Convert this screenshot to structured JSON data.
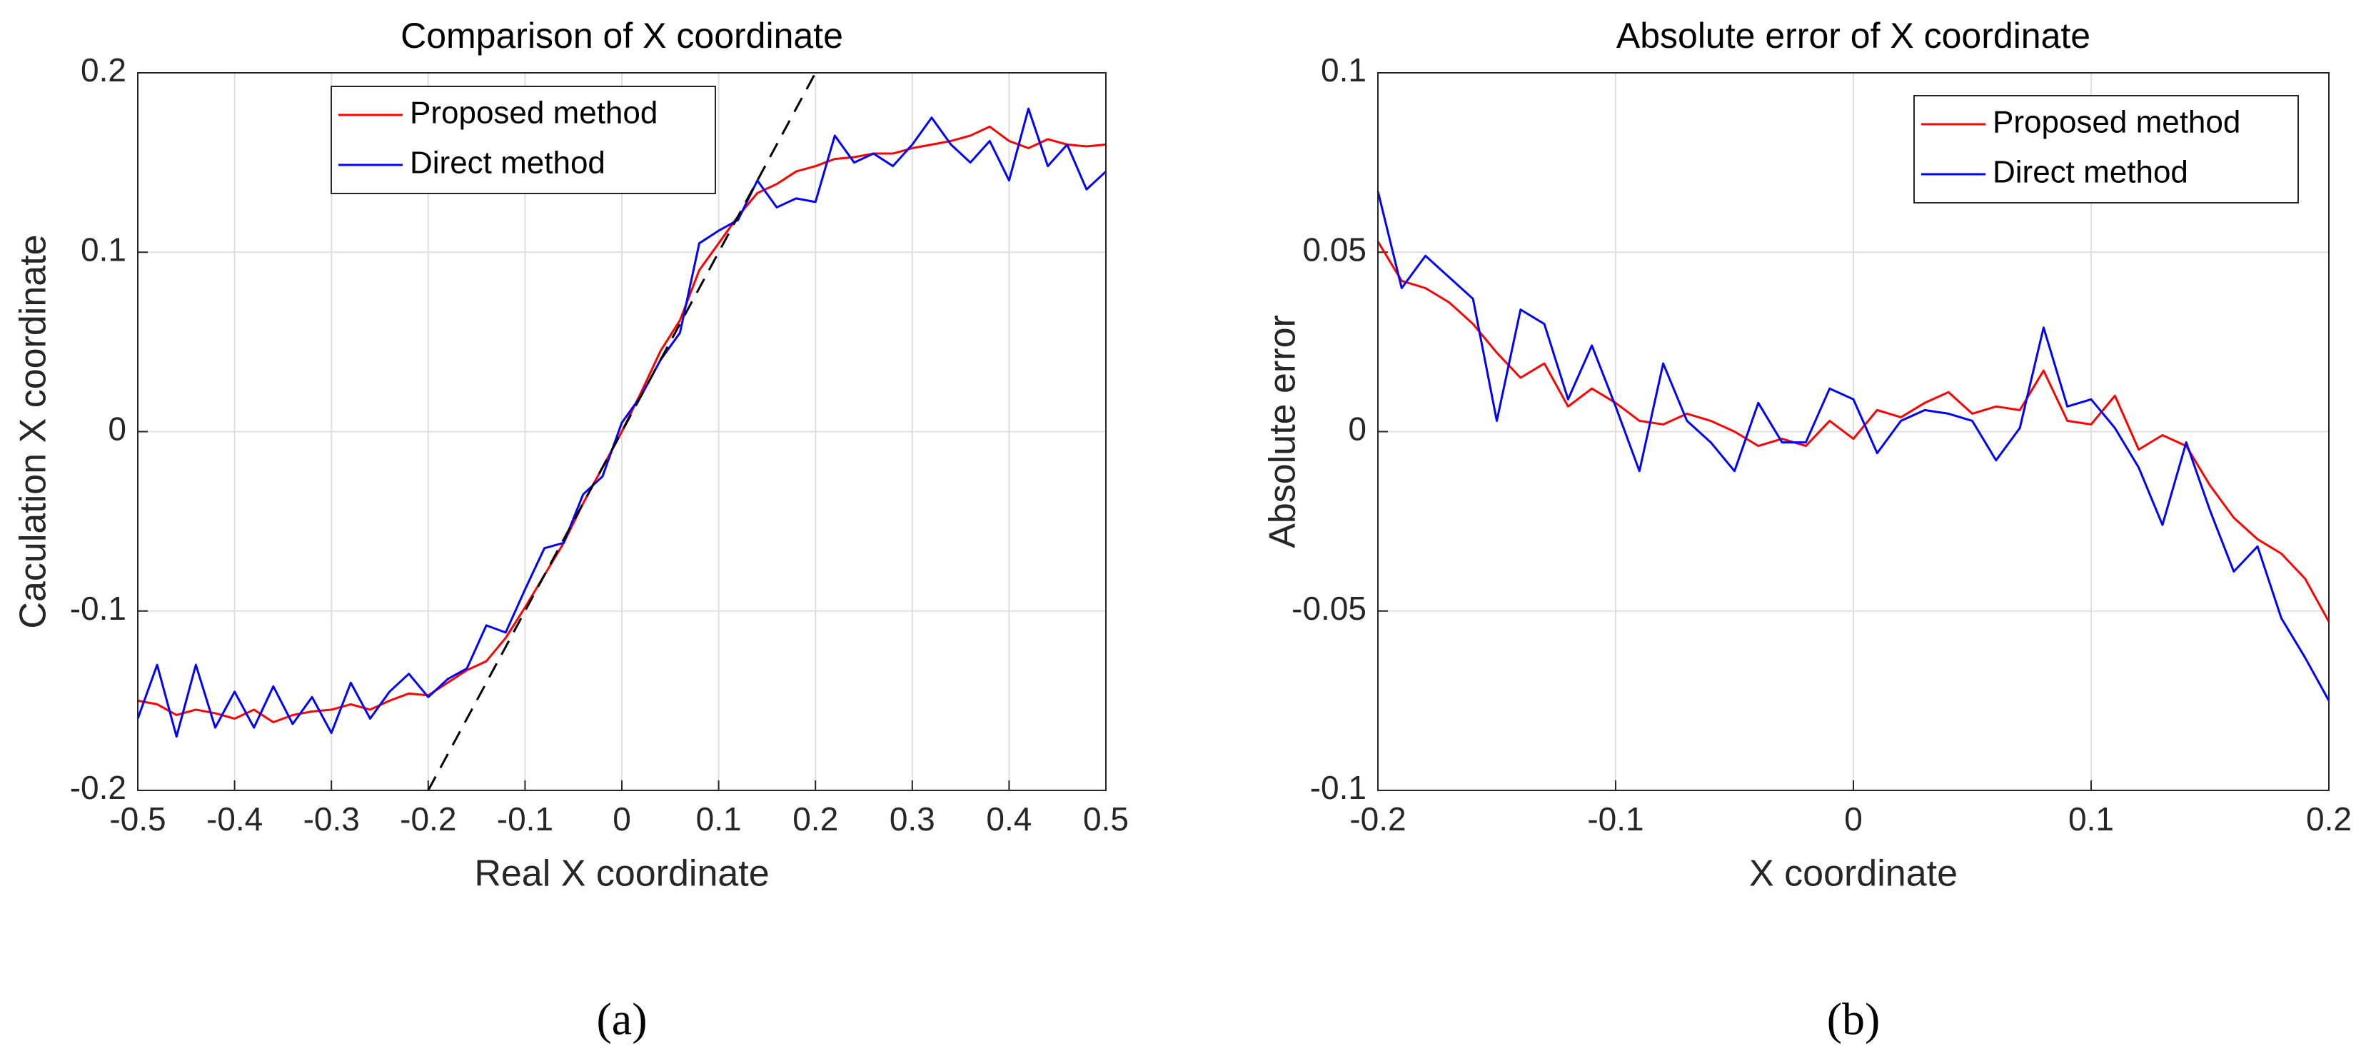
{
  "chart_data": [
    {
      "type": "line",
      "title": "Comparison of X coordinate",
      "xlabel": "Real X coordinate",
      "ylabel": "Caculation X coordinate",
      "caption": "(a)",
      "xlim": [
        -0.5,
        0.5
      ],
      "ylim": [
        -0.2,
        0.2
      ],
      "xticks": [
        -0.5,
        -0.4,
        -0.3,
        -0.2,
        -0.1,
        0,
        0.1,
        0.2,
        0.3,
        0.4,
        0.5
      ],
      "yticks": [
        -0.2,
        -0.1,
        0,
        0.1,
        0.2
      ],
      "grid": true,
      "legend": "upper center",
      "x": [
        -0.5,
        -0.48,
        -0.46,
        -0.44,
        -0.42,
        -0.4,
        -0.38,
        -0.36,
        -0.34,
        -0.32,
        -0.3,
        -0.28,
        -0.26,
        -0.24,
        -0.22,
        -0.2,
        -0.18,
        -0.16,
        -0.14,
        -0.12,
        -0.1,
        -0.08,
        -0.06,
        -0.04,
        -0.02,
        0,
        0.02,
        0.04,
        0.06,
        0.08,
        0.1,
        0.12,
        0.14,
        0.16,
        0.18,
        0.2,
        0.22,
        0.24,
        0.26,
        0.28,
        0.3,
        0.32,
        0.34,
        0.36,
        0.38,
        0.4,
        0.42,
        0.44,
        0.46,
        0.48,
        0.5
      ],
      "series": [
        {
          "name": "Proposed method",
          "color": "#ff0000",
          "values": [
            -0.15,
            -0.152,
            -0.158,
            -0.155,
            -0.157,
            -0.16,
            -0.155,
            -0.162,
            -0.158,
            -0.156,
            -0.155,
            -0.152,
            -0.155,
            -0.15,
            -0.146,
            -0.147,
            -0.14,
            -0.133,
            -0.128,
            -0.115,
            -0.098,
            -0.08,
            -0.062,
            -0.04,
            -0.02,
            0,
            0.022,
            0.045,
            0.062,
            0.09,
            0.105,
            0.12,
            0.133,
            0.138,
            0.145,
            0.148,
            0.152,
            0.153,
            0.155,
            0.155,
            0.158,
            0.16,
            0.162,
            0.165,
            0.17,
            0.162,
            0.158,
            0.163,
            0.16,
            0.159,
            0.16
          ]
        },
        {
          "name": "Direct method",
          "color": "#0000ff",
          "values": [
            -0.16,
            -0.13,
            -0.17,
            -0.13,
            -0.165,
            -0.145,
            -0.165,
            -0.142,
            -0.163,
            -0.148,
            -0.168,
            -0.14,
            -0.16,
            -0.145,
            -0.135,
            -0.148,
            -0.138,
            -0.132,
            -0.108,
            -0.112,
            -0.088,
            -0.065,
            -0.062,
            -0.035,
            -0.025,
            0.005,
            0.02,
            0.04,
            0.055,
            0.105,
            0.112,
            0.118,
            0.14,
            0.125,
            0.13,
            0.128,
            0.165,
            0.15,
            0.155,
            0.148,
            0.16,
            0.175,
            0.16,
            0.15,
            0.162,
            0.14,
            0.18,
            0.148,
            0.16,
            0.135,
            0.145
          ]
        },
        {
          "color": "#000000",
          "dashed": true,
          "x": [
            -0.2,
            0.2
          ],
          "values": [
            -0.2,
            0.2
          ]
        }
      ]
    },
    {
      "type": "line",
      "title": "Absolute error of X coordinate",
      "xlabel": "X coordinate",
      "ylabel": "Absolute error",
      "caption": "(b)",
      "xlim": [
        -0.2,
        0.2
      ],
      "ylim": [
        -0.1,
        0.1
      ],
      "xticks": [
        -0.2,
        -0.1,
        0,
        0.1,
        0.2
      ],
      "yticks": [
        -0.1,
        -0.05,
        0,
        0.05,
        0.1
      ],
      "grid": true,
      "legend": "upper right",
      "x": [
        -0.2,
        -0.19,
        -0.18,
        -0.17,
        -0.16,
        -0.15,
        -0.14,
        -0.13,
        -0.12,
        -0.11,
        -0.1,
        -0.09,
        -0.08,
        -0.07,
        -0.06,
        -0.05,
        -0.04,
        -0.03,
        -0.02,
        -0.01,
        0,
        0.01,
        0.02,
        0.03,
        0.04,
        0.05,
        0.06,
        0.07,
        0.08,
        0.09,
        0.1,
        0.11,
        0.12,
        0.13,
        0.14,
        0.15,
        0.16,
        0.17,
        0.18,
        0.19,
        0.2
      ],
      "series": [
        {
          "name": "Proposed method",
          "color": "#ff0000",
          "values": [
            0.053,
            0.042,
            0.04,
            0.036,
            0.03,
            0.022,
            0.015,
            0.019,
            0.007,
            0.012,
            0.008,
            0.003,
            0.002,
            0.005,
            0.003,
            0,
            -0.004,
            -0.002,
            -0.004,
            0.003,
            -0.002,
            0.006,
            0.004,
            0.008,
            0.011,
            0.005,
            0.007,
            0.006,
            0.017,
            0.003,
            0.002,
            0.01,
            -0.005,
            -0.001,
            -0.004,
            -0.015,
            -0.024,
            -0.03,
            -0.034,
            -0.041,
            -0.053
          ]
        },
        {
          "name": "Direct method",
          "color": "#0000ff",
          "values": [
            0.067,
            0.04,
            0.049,
            0.043,
            0.037,
            0.003,
            0.034,
            0.03,
            0.009,
            0.024,
            0.007,
            -0.011,
            0.019,
            0.003,
            -0.003,
            -0.011,
            0.008,
            -0.003,
            -0.003,
            0.012,
            0.009,
            -0.006,
            0.003,
            0.006,
            0.005,
            0.003,
            -0.008,
            0.001,
            0.029,
            0.007,
            0.009,
            0.001,
            -0.01,
            -0.026,
            -0.003,
            -0.022,
            -0.039,
            -0.032,
            -0.052,
            -0.063,
            -0.075
          ]
        }
      ]
    }
  ]
}
